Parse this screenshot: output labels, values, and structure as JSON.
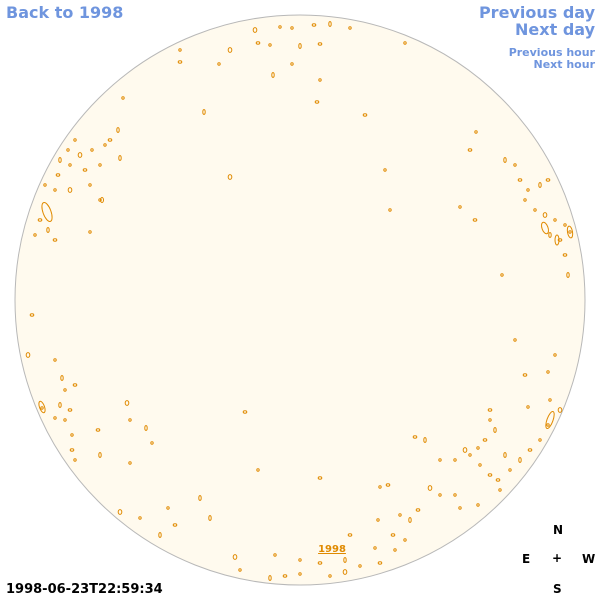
{
  "nav": {
    "back_label": "Back to 1998",
    "prev_day_label": "Previous day",
    "next_day_label": "Next day",
    "prev_hour_label": "Previous hour",
    "next_hour_label": "Next hour"
  },
  "disk": {
    "year_label": "1998",
    "fill_color": "#fffaee",
    "limb_color": "#b8b8b8",
    "contour_color": "#e08a00"
  },
  "timestamp": "1998-06-23T22:59:34",
  "compass": {
    "north": "N",
    "east": "E",
    "center": "+",
    "west": "W",
    "south": "S"
  }
}
